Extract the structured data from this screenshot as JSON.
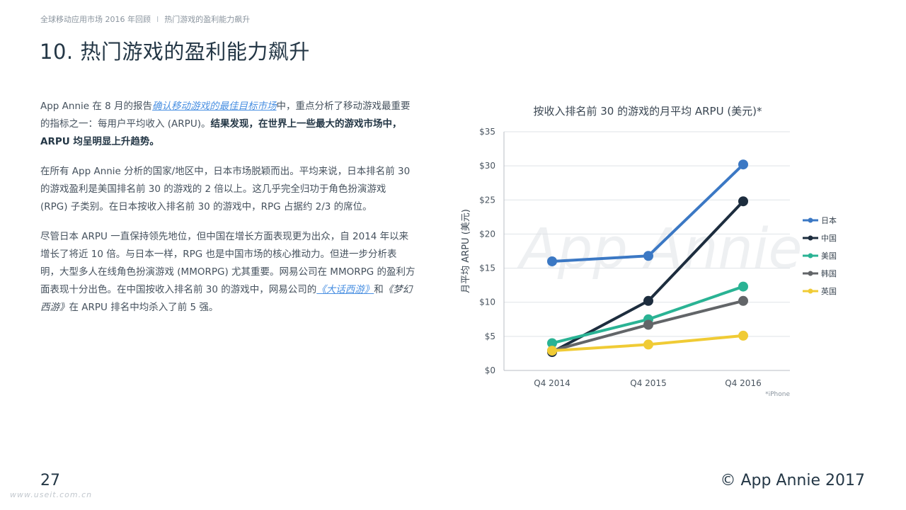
{
  "breadcrumb": {
    "report": "全球移动应用市场 2016 年回顾",
    "separator": "I",
    "section": "热门游戏的盈利能力飙升"
  },
  "page_title": "10. 热门游戏的盈利能力飙升",
  "paragraphs": {
    "p1": {
      "intro": "App Annie 在 8 月的报告",
      "link": "确认移动游戏的最佳目标市场",
      "mid": "中，重点分析了移动游戏最重要的指标之一：每用户平均收入 (ARPU)。",
      "bold": "结果发现，在世界上一些最大的游戏市场中，ARPU 均呈明显上升趋势。"
    },
    "p2": "在所有 App Annie 分析的国家/地区中，日本市场脱颖而出。平均来说，日本排名前 30 的游戏盈利是美国排名前 30 的游戏的 2 倍以上。这几乎完全归功于角色扮演游戏 (RPG) 子类别。在日本按收入排名前 30 的游戏中，RPG 占据约 2/3 的席位。",
    "p3": {
      "text": "尽管日本 ARPU 一直保持领先地位，但中国在增长方面表现更为出众，自 2014 年以来增长了将近 10 倍。与日本一样，RPG 也是中国市场的核心推动力。但进一步分析表明，大型多人在线角色扮演游戏 (MMORPG) 尤其重要。网易公司在 MMORPG 的盈利方面表现十分出色。在中国按收入排名前 30 的游戏中，网易公司的",
      "link": "《大话西游》",
      "mid": "和",
      "italic": "《梦幻西游》",
      "end": "在 ARPU 排名中均杀入了前 5 强。"
    }
  },
  "chart_data": {
    "type": "line",
    "title": "按收入排名前 30 的游戏的月平均 ARPU (美元)*",
    "ylabel": "月平均 ARPU (美元)",
    "xlabel": "",
    "categories": [
      "Q4 2014",
      "Q4 2015",
      "Q4 2016"
    ],
    "y_ticks": [
      "$0",
      "$5",
      "$10",
      "$15",
      "$20",
      "$25",
      "$30",
      "$35"
    ],
    "ylim": [
      0,
      35
    ],
    "grid": true,
    "legend_position": "right",
    "footnote": "*iPhone",
    "watermark": "App Annie",
    "series": [
      {
        "name": "日本",
        "color": "#3b78c4",
        "values": [
          16.0,
          16.8,
          30.2
        ]
      },
      {
        "name": "中国",
        "color": "#1d2d3e",
        "values": [
          2.7,
          10.2,
          24.8
        ]
      },
      {
        "name": "美国",
        "color": "#2ab394",
        "values": [
          4.0,
          7.5,
          12.3
        ]
      },
      {
        "name": "韩国",
        "color": "#626568",
        "values": [
          2.9,
          6.7,
          10.2
        ]
      },
      {
        "name": "英国",
        "color": "#f0cb35",
        "values": [
          2.9,
          3.8,
          5.1
        ]
      }
    ]
  },
  "footer": {
    "page_number": "27",
    "copyright": "© App Annie 2017",
    "site_watermark": "www.useit.com.cn"
  }
}
